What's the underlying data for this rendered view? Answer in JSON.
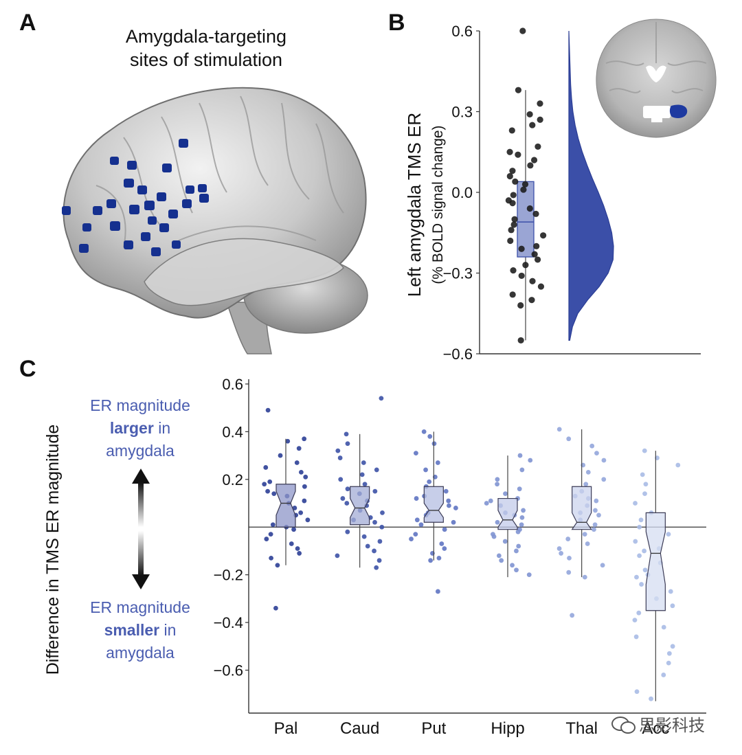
{
  "panels": {
    "a": {
      "letter": "A",
      "title_line1": "Amygdala-targeting",
      "title_line2": "sites of stimulation"
    },
    "b": {
      "letter": "B",
      "ylabel_line1": "Left amygdala TMS ER",
      "ylabel_line2": "(% BOLD signal change)"
    },
    "c": {
      "letter": "C",
      "ylabel": "Difference in TMS ER magnitude",
      "legend_top": {
        "line1": "ER magnitude",
        "bold": "larger",
        "rest": " in",
        "line3": "amygdala"
      },
      "legend_bottom": {
        "line1": "ER magnitude",
        "bold": "smaller",
        "rest": " in",
        "line3": "amygdala"
      },
      "watermark": "思影科技"
    }
  },
  "colors": {
    "accent_blue": "#3b4fa8",
    "text_blue": "#4a5db0",
    "dark_points": "#1a1a1a",
    "stim_sites": "#15308f"
  },
  "chart_data": [
    {
      "id": "B",
      "type": "scatter",
      "subtype": "raincloud",
      "ylim": [
        -0.6,
        0.6
      ],
      "yticks": [
        -0.6,
        -0.3,
        0.0,
        0.3,
        0.6
      ],
      "ytick_labels": [
        "−0.6",
        "−0.3",
        "0.0",
        "0.3",
        "0.6"
      ],
      "box": {
        "q1": -0.24,
        "median": -0.11,
        "q3": 0.04,
        "whisker_low": -0.55,
        "whisker_high": 0.38
      },
      "points": [
        0.6,
        0.38,
        0.33,
        0.29,
        0.27,
        0.25,
        0.23,
        0.17,
        0.15,
        0.14,
        0.12,
        0.1,
        0.08,
        0.06,
        0.04,
        0.03,
        0.01,
        -0.01,
        -0.03,
        -0.04,
        -0.06,
        -0.08,
        -0.1,
        -0.12,
        -0.14,
        -0.16,
        -0.18,
        -0.2,
        -0.21,
        -0.23,
        -0.25,
        -0.27,
        -0.29,
        -0.31,
        -0.33,
        -0.35,
        -0.38,
        -0.4,
        -0.42,
        -0.55
      ],
      "density": {
        "y": [
          -0.55,
          -0.5,
          -0.45,
          -0.4,
          -0.35,
          -0.3,
          -0.25,
          -0.2,
          -0.15,
          -0.1,
          -0.05,
          0.0,
          0.05,
          0.1,
          0.15,
          0.2,
          0.25,
          0.3,
          0.35,
          0.4,
          0.45,
          0.5,
          0.55,
          0.6
        ],
        "d": [
          0.02,
          0.08,
          0.2,
          0.42,
          0.68,
          0.88,
          0.99,
          1.0,
          0.96,
          0.88,
          0.78,
          0.66,
          0.53,
          0.41,
          0.3,
          0.21,
          0.14,
          0.09,
          0.06,
          0.04,
          0.03,
          0.02,
          0.01,
          0.0
        ]
      }
    },
    {
      "id": "C",
      "type": "scatter",
      "subtype": "notched-box",
      "ylim": [
        -0.78,
        0.62
      ],
      "yticks": [
        -0.6,
        -0.4,
        -0.2,
        0.2,
        0.4,
        0.6
      ],
      "ytick_labels": [
        "−0.6",
        "−0.4",
        "−0.2",
        "0.2",
        "0.4",
        "0.6"
      ],
      "categories": [
        "Pal",
        "Caud",
        "Put",
        "Hipp",
        "Thal",
        "Acc"
      ],
      "reference_line": 0,
      "series": [
        {
          "name": "Pal",
          "color": "#2c3f96",
          "fill": "#8d96c8",
          "q1": 0.0,
          "median": 0.1,
          "q3": 0.18,
          "notch_low": 0.05,
          "notch_high": 0.15,
          "whisker_low": -0.16,
          "whisker_high": 0.37,
          "points": [
            0.49,
            0.37,
            0.36,
            0.33,
            0.3,
            0.27,
            0.25,
            0.23,
            0.21,
            0.19,
            0.17,
            0.15,
            0.13,
            0.11,
            0.1,
            0.08,
            0.06,
            0.05,
            0.03,
            0.01,
            -0.01,
            -0.03,
            -0.05,
            -0.07,
            -0.09,
            -0.11,
            -0.13,
            -0.16,
            -0.34,
            0.18,
            0.14,
            0.0
          ]
        },
        {
          "name": "Caud",
          "color": "#3d52a6",
          "fill": "#a3acd6",
          "q1": 0.01,
          "median": 0.08,
          "q3": 0.17,
          "notch_low": 0.04,
          "notch_high": 0.12,
          "whisker_low": -0.17,
          "whisker_high": 0.39,
          "points": [
            0.54,
            0.39,
            0.35,
            0.32,
            0.29,
            0.27,
            0.24,
            0.22,
            0.2,
            0.18,
            0.16,
            0.14,
            0.12,
            0.1,
            0.09,
            0.07,
            0.06,
            0.04,
            0.02,
            0.0,
            -0.02,
            -0.04,
            -0.06,
            -0.08,
            -0.1,
            -0.12,
            -0.14,
            -0.17,
            0.15,
            0.11,
            0.03
          ]
        },
        {
          "name": "Put",
          "color": "#5f74c2",
          "fill": "#b4bde2",
          "q1": 0.02,
          "median": 0.07,
          "q3": 0.17,
          "notch_low": 0.04,
          "notch_high": 0.1,
          "whisker_low": -0.14,
          "whisker_high": 0.4,
          "points": [
            0.4,
            0.38,
            0.35,
            0.31,
            0.27,
            0.24,
            0.21,
            0.19,
            0.17,
            0.15,
            0.13,
            0.11,
            0.09,
            0.08,
            0.06,
            0.05,
            0.03,
            0.01,
            -0.01,
            -0.03,
            -0.05,
            -0.07,
            -0.09,
            -0.11,
            -0.13,
            -0.14,
            -0.27,
            0.12,
            0.02
          ]
        },
        {
          "name": "Hipp",
          "color": "#7f93d2",
          "fill": "#c3cbea",
          "q1": -0.01,
          "median": 0.03,
          "q3": 0.12,
          "notch_low": 0.0,
          "notch_high": 0.07,
          "whisker_low": -0.21,
          "whisker_high": 0.3,
          "points": [
            0.3,
            0.28,
            0.24,
            0.2,
            0.18,
            0.16,
            0.14,
            0.12,
            0.1,
            0.09,
            0.07,
            0.05,
            0.04,
            0.02,
            0.01,
            -0.01,
            -0.02,
            -0.04,
            -0.06,
            -0.08,
            -0.1,
            -0.12,
            -0.14,
            -0.16,
            -0.18,
            -0.2,
            0.06,
            0.11,
            -0.03
          ]
        },
        {
          "name": "Thal",
          "color": "#93a6dc",
          "fill": "#ccd4ee",
          "q1": -0.01,
          "median": 0.02,
          "q3": 0.17,
          "notch_low": -0.01,
          "notch_high": 0.06,
          "whisker_low": -0.21,
          "whisker_high": 0.41,
          "points": [
            0.41,
            0.37,
            0.34,
            0.31,
            0.28,
            0.26,
            0.23,
            0.2,
            0.18,
            0.15,
            0.13,
            0.11,
            0.09,
            0.07,
            0.05,
            0.03,
            0.01,
            -0.01,
            -0.03,
            -0.05,
            -0.07,
            -0.09,
            -0.11,
            -0.13,
            -0.16,
            -0.19,
            -0.21,
            -0.37,
            0.12,
            0.06
          ]
        },
        {
          "name": "Acc",
          "color": "#a9bbe6",
          "fill": "#d6ddf2",
          "q1": -0.35,
          "median": -0.11,
          "q3": 0.06,
          "notch_low": -0.24,
          "notch_high": -0.02,
          "whisker_low": -0.73,
          "whisker_high": 0.32,
          "points": [
            0.32,
            0.29,
            0.26,
            0.22,
            0.18,
            0.14,
            0.1,
            0.06,
            0.03,
            0.0,
            -0.03,
            -0.06,
            -0.09,
            -0.12,
            -0.15,
            -0.18,
            -0.21,
            -0.24,
            -0.27,
            -0.3,
            -0.33,
            -0.36,
            -0.39,
            -0.42,
            -0.46,
            -0.5,
            -0.53,
            -0.57,
            -0.62,
            -0.69,
            -0.72,
            -0.1,
            -0.2
          ]
        }
      ]
    }
  ]
}
